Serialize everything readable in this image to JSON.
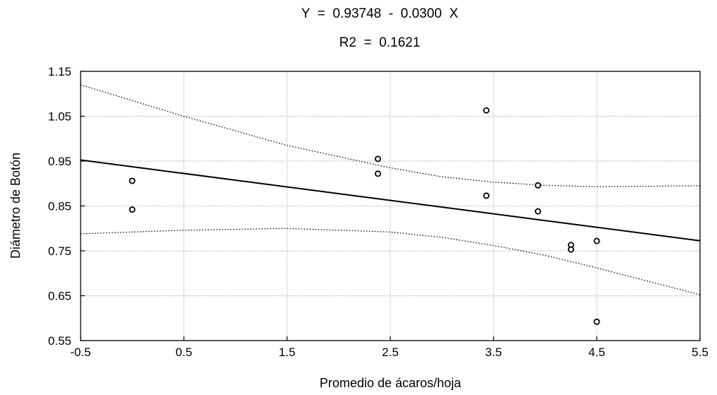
{
  "chart_data": {
    "type": "scatter",
    "title_lines": [
      "Y  =  0.93748  -  0.0300  X",
      "R2  =  0.1621"
    ],
    "xlabel": "Promedio de ácaros/hoja",
    "ylabel": "Diámetro de Botón",
    "xlim": [
      -0.5,
      5.5
    ],
    "ylim": [
      0.55,
      1.15
    ],
    "x_ticks": [
      "-0.5",
      "0.5",
      "1.5",
      "2.5",
      "3.5",
      "4.5",
      "5.5"
    ],
    "y_ticks": [
      "1.15",
      "1.05",
      "0.95",
      "0.85",
      "0.75",
      "0.65",
      "0.55"
    ],
    "grid": true,
    "points": [
      {
        "x": 0.0,
        "y": 0.906
      },
      {
        "x": 0.0,
        "y": 0.842
      },
      {
        "x": 2.38,
        "y": 0.955
      },
      {
        "x": 2.38,
        "y": 0.922
      },
      {
        "x": 3.43,
        "y": 1.063
      },
      {
        "x": 3.43,
        "y": 0.873
      },
      {
        "x": 3.93,
        "y": 0.896
      },
      {
        "x": 3.93,
        "y": 0.838
      },
      {
        "x": 4.25,
        "y": 0.763
      },
      {
        "x": 4.25,
        "y": 0.753
      },
      {
        "x": 4.5,
        "y": 0.772
      },
      {
        "x": 4.5,
        "y": 0.592
      }
    ],
    "regression": {
      "intercept": 0.93748,
      "slope": -0.03
    },
    "confidence_upper": [
      {
        "x": -0.5,
        "y": 1.12
      },
      {
        "x": 0.5,
        "y": 1.05
      },
      {
        "x": 1.5,
        "y": 0.985
      },
      {
        "x": 2.5,
        "y": 0.935
      },
      {
        "x": 3.0,
        "y": 0.915
      },
      {
        "x": 3.5,
        "y": 0.903
      },
      {
        "x": 4.0,
        "y": 0.896
      },
      {
        "x": 4.5,
        "y": 0.893
      },
      {
        "x": 5.5,
        "y": 0.895
      }
    ],
    "confidence_lower": [
      {
        "x": -0.5,
        "y": 0.788
      },
      {
        "x": 0.5,
        "y": 0.796
      },
      {
        "x": 1.5,
        "y": 0.8
      },
      {
        "x": 2.5,
        "y": 0.792
      },
      {
        "x": 3.0,
        "y": 0.78
      },
      {
        "x": 3.5,
        "y": 0.762
      },
      {
        "x": 4.0,
        "y": 0.74
      },
      {
        "x": 4.5,
        "y": 0.712
      },
      {
        "x": 5.5,
        "y": 0.652
      }
    ]
  }
}
